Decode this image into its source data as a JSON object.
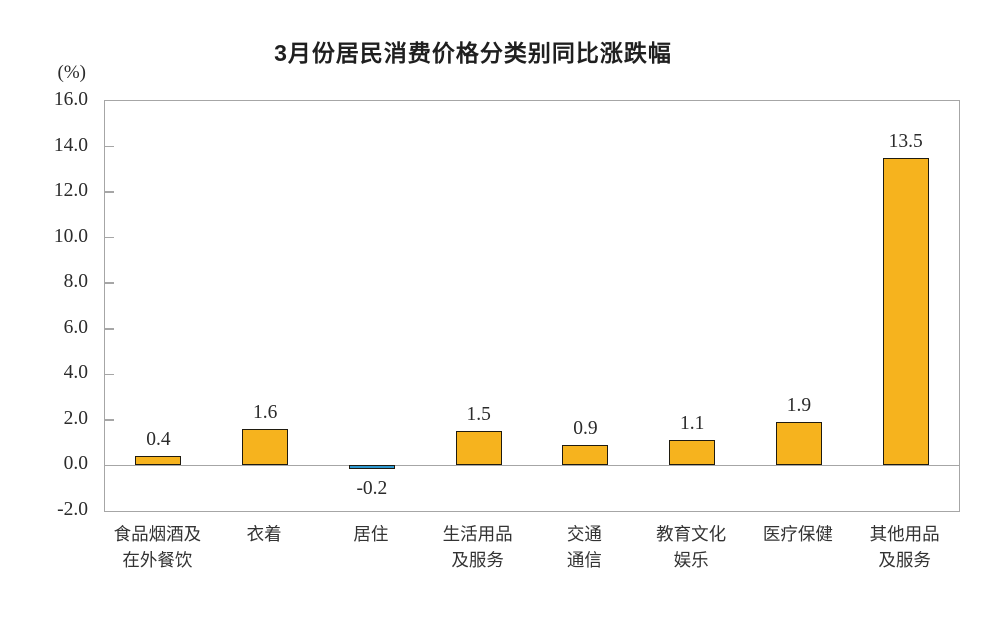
{
  "chart_data": {
    "type": "bar",
    "title": "3月份居民消费价格分类别同比涨跌幅",
    "unit_label": "(%)",
    "xlabel": "",
    "ylabel": "(%)",
    "categories": [
      [
        "食品烟酒及",
        "在外餐饮"
      ],
      [
        "衣着"
      ],
      [
        "居住"
      ],
      [
        "生活用品",
        "及服务"
      ],
      [
        "交通",
        "通信"
      ],
      [
        "教育文化",
        "娱乐"
      ],
      [
        "医疗保健"
      ],
      [
        "其他用品",
        "及服务"
      ]
    ],
    "values": [
      0.4,
      1.6,
      -0.2,
      1.5,
      0.9,
      1.1,
      1.9,
      13.5
    ],
    "value_labels": [
      "0.4",
      "1.6",
      "-0.2",
      "1.5",
      "0.9",
      "1.1",
      "1.9",
      "13.5"
    ],
    "ylim": [
      -2.0,
      16.0
    ],
    "yticks": [
      16.0,
      14.0,
      12.0,
      10.0,
      8.0,
      6.0,
      4.0,
      2.0,
      0.0,
      -2.0
    ],
    "ytick_labels": [
      "16.0",
      "14.0",
      "12.0",
      "10.0",
      "8.0",
      "6.0",
      "4.0",
      "2.0",
      "0.0",
      "-2.0"
    ],
    "grid": false,
    "legend": false,
    "colors": {
      "positive_bar": "#F6B31E",
      "negative_bar": "#2E98D0",
      "bar_outline": "#1F1B10",
      "axis": "#A6A6A6",
      "text": "#2B2B2B"
    }
  }
}
